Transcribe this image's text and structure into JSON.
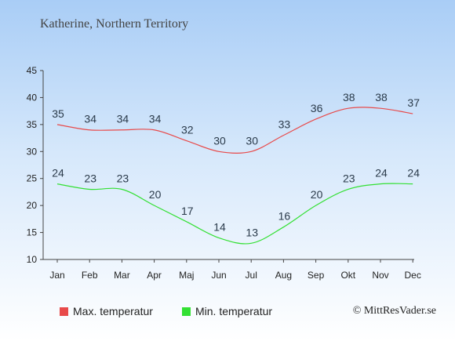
{
  "header": {
    "title": "Katherine, Northern Territory"
  },
  "credit": "© MittResVader.se",
  "colors": {
    "max": "#e84a4a",
    "min": "#33e033",
    "axis": "#444444",
    "label": "#2a3a4a"
  },
  "chart_data": {
    "type": "line",
    "title": "Katherine, Northern Territory",
    "categories": [
      "Jan",
      "Feb",
      "Mar",
      "Apr",
      "Maj",
      "Jun",
      "Jul",
      "Aug",
      "Sep",
      "Okt",
      "Nov",
      "Dec"
    ],
    "ylim": [
      10,
      45
    ],
    "yticks": [
      10,
      15,
      20,
      25,
      30,
      35,
      40,
      45
    ],
    "grid": false,
    "legend_position": "bottom",
    "series": [
      {
        "name": "Max. temperatur",
        "color": "#e84a4a",
        "values": [
          35,
          34,
          34,
          34,
          32,
          30,
          30,
          33,
          36,
          38,
          38,
          37
        ]
      },
      {
        "name": "Min. temperatur",
        "color": "#33e033",
        "values": [
          24,
          23,
          23,
          20,
          17,
          14,
          13,
          16,
          20,
          23,
          24,
          24
        ]
      }
    ]
  }
}
